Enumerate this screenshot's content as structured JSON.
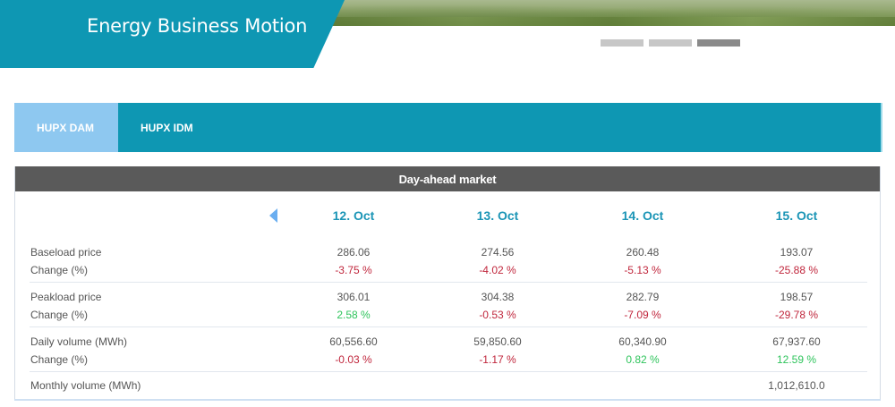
{
  "hero": {
    "title": "Energy Business Motion",
    "slider_count": 3,
    "active_slide": 3
  },
  "tabs": [
    {
      "label": "HUPX DAM",
      "active": true
    },
    {
      "label": "HUPX IDM",
      "active": false
    }
  ],
  "market": {
    "title": "Day-ahead market",
    "nav_icon": "chevron-left-icon",
    "dates": [
      "12. Oct",
      "13. Oct",
      "14. Oct",
      "15. Oct"
    ],
    "rows": {
      "baseload_label": "Baseload price",
      "baseload": [
        "286.06",
        "274.56",
        "260.48",
        "193.07"
      ],
      "baseload_change_label": "Change (%)",
      "baseload_change": [
        "-3.75 %",
        "-4.02 %",
        "-5.13 %",
        "-25.88 %"
      ],
      "peakload_label": "Peakload price",
      "peakload": [
        "306.01",
        "304.38",
        "282.79",
        "198.57"
      ],
      "peakload_change_label": "Change (%)",
      "peakload_change": [
        "2.58 %",
        "-0.53 %",
        "-7.09 %",
        "-29.78 %"
      ],
      "volume_label": "Daily volume (MWh)",
      "volume": [
        "60,556.60",
        "59,850.60",
        "60,340.90",
        "67,937.60"
      ],
      "volume_change_label": "Change (%)",
      "volume_change": [
        "-0.03 %",
        "-1.17 %",
        "0.82 %",
        "12.59 %"
      ],
      "monthly_label": "Monthly volume (MWh)",
      "monthly_value": "1,012,610.0"
    }
  },
  "colors": {
    "accent": "#0e97b3",
    "tab_active": "#8ec8f0",
    "header_bar": "#5a5a5a",
    "negative": "#c0263c",
    "positive": "#2fc45c",
    "date": "#1b95b6"
  }
}
